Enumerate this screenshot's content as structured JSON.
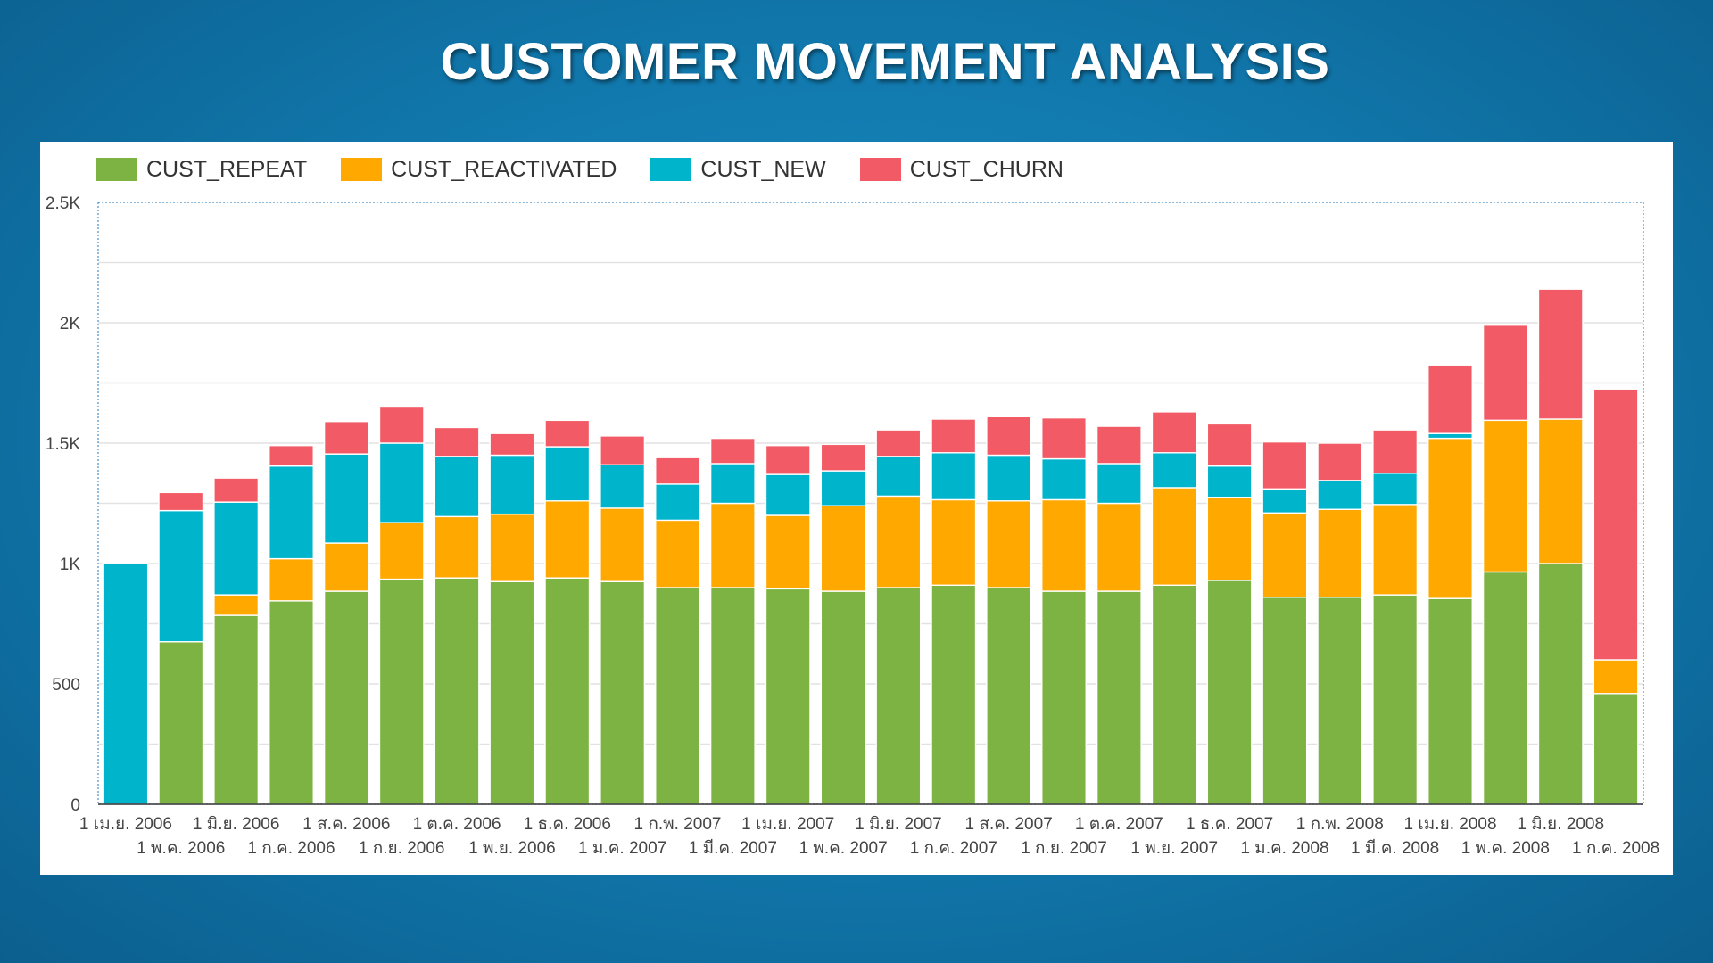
{
  "title": "CUSTOMER MOVEMENT ANALYSIS",
  "colors": {
    "CUST_REPEAT": "#7cb342",
    "CUST_REACTIVATED": "#ffa800",
    "CUST_NEW": "#00b4cc",
    "CUST_CHURN": "#f25b66"
  },
  "chart_data": {
    "type": "bar",
    "stacked": true,
    "legend": [
      "CUST_REPEAT",
      "CUST_REACTIVATED",
      "CUST_NEW",
      "CUST_CHURN"
    ],
    "legend_position": "top-left",
    "ylim": [
      0,
      2500
    ],
    "yticks": [
      0,
      500,
      1000,
      1500,
      2000,
      2500
    ],
    "ytick_labels": [
      "0",
      "500",
      "1K",
      "1.5K",
      "2K",
      "2.5K"
    ],
    "grid": true,
    "categories": [
      "1 เม.ย. 2006",
      "1 พ.ค. 2006",
      "1 มิ.ย. 2006",
      "1 ก.ค. 2006",
      "1 ส.ค. 2006",
      "1 ก.ย. 2006",
      "1 ต.ค. 2006",
      "1 พ.ย. 2006",
      "1 ธ.ค. 2006",
      "1 ม.ค. 2007",
      "1 ก.พ. 2007",
      "1 มี.ค. 2007",
      "1 เม.ย. 2007",
      "1 พ.ค. 2007",
      "1 มิ.ย. 2007",
      "1 ก.ค. 2007",
      "1 ส.ค. 2007",
      "1 ก.ย. 2007",
      "1 ต.ค. 2007",
      "1 พ.ย. 2007",
      "1 ธ.ค. 2007",
      "1 ม.ค. 2008",
      "1 ก.พ. 2008",
      "1 มี.ค. 2008",
      "1 เม.ย. 2008",
      "1 พ.ค. 2008",
      "1 มิ.ย. 2008",
      "1 ก.ค. 2008"
    ],
    "series": [
      {
        "name": "CUST_REPEAT",
        "values": [
          0,
          675,
          785,
          845,
          885,
          935,
          940,
          925,
          940,
          925,
          900,
          900,
          895,
          885,
          900,
          910,
          900,
          885,
          885,
          910,
          930,
          860,
          860,
          870,
          855,
          965,
          1000,
          460
        ]
      },
      {
        "name": "CUST_REACTIVATED",
        "values": [
          0,
          0,
          85,
          175,
          200,
          235,
          255,
          280,
          320,
          305,
          280,
          350,
          305,
          355,
          380,
          355,
          360,
          380,
          365,
          405,
          345,
          350,
          365,
          375,
          665,
          630,
          600,
          140
        ]
      },
      {
        "name": "CUST_NEW",
        "values": [
          1000,
          545,
          385,
          385,
          370,
          330,
          250,
          245,
          225,
          180,
          150,
          165,
          170,
          145,
          165,
          195,
          190,
          170,
          165,
          145,
          130,
          100,
          120,
          130,
          20,
          0,
          0,
          0
        ]
      },
      {
        "name": "CUST_CHURN",
        "values": [
          0,
          75,
          100,
          85,
          135,
          150,
          120,
          90,
          110,
          120,
          110,
          105,
          120,
          110,
          110,
          140,
          160,
          170,
          155,
          170,
          175,
          195,
          155,
          180,
          285,
          395,
          540,
          1125
        ]
      }
    ]
  }
}
